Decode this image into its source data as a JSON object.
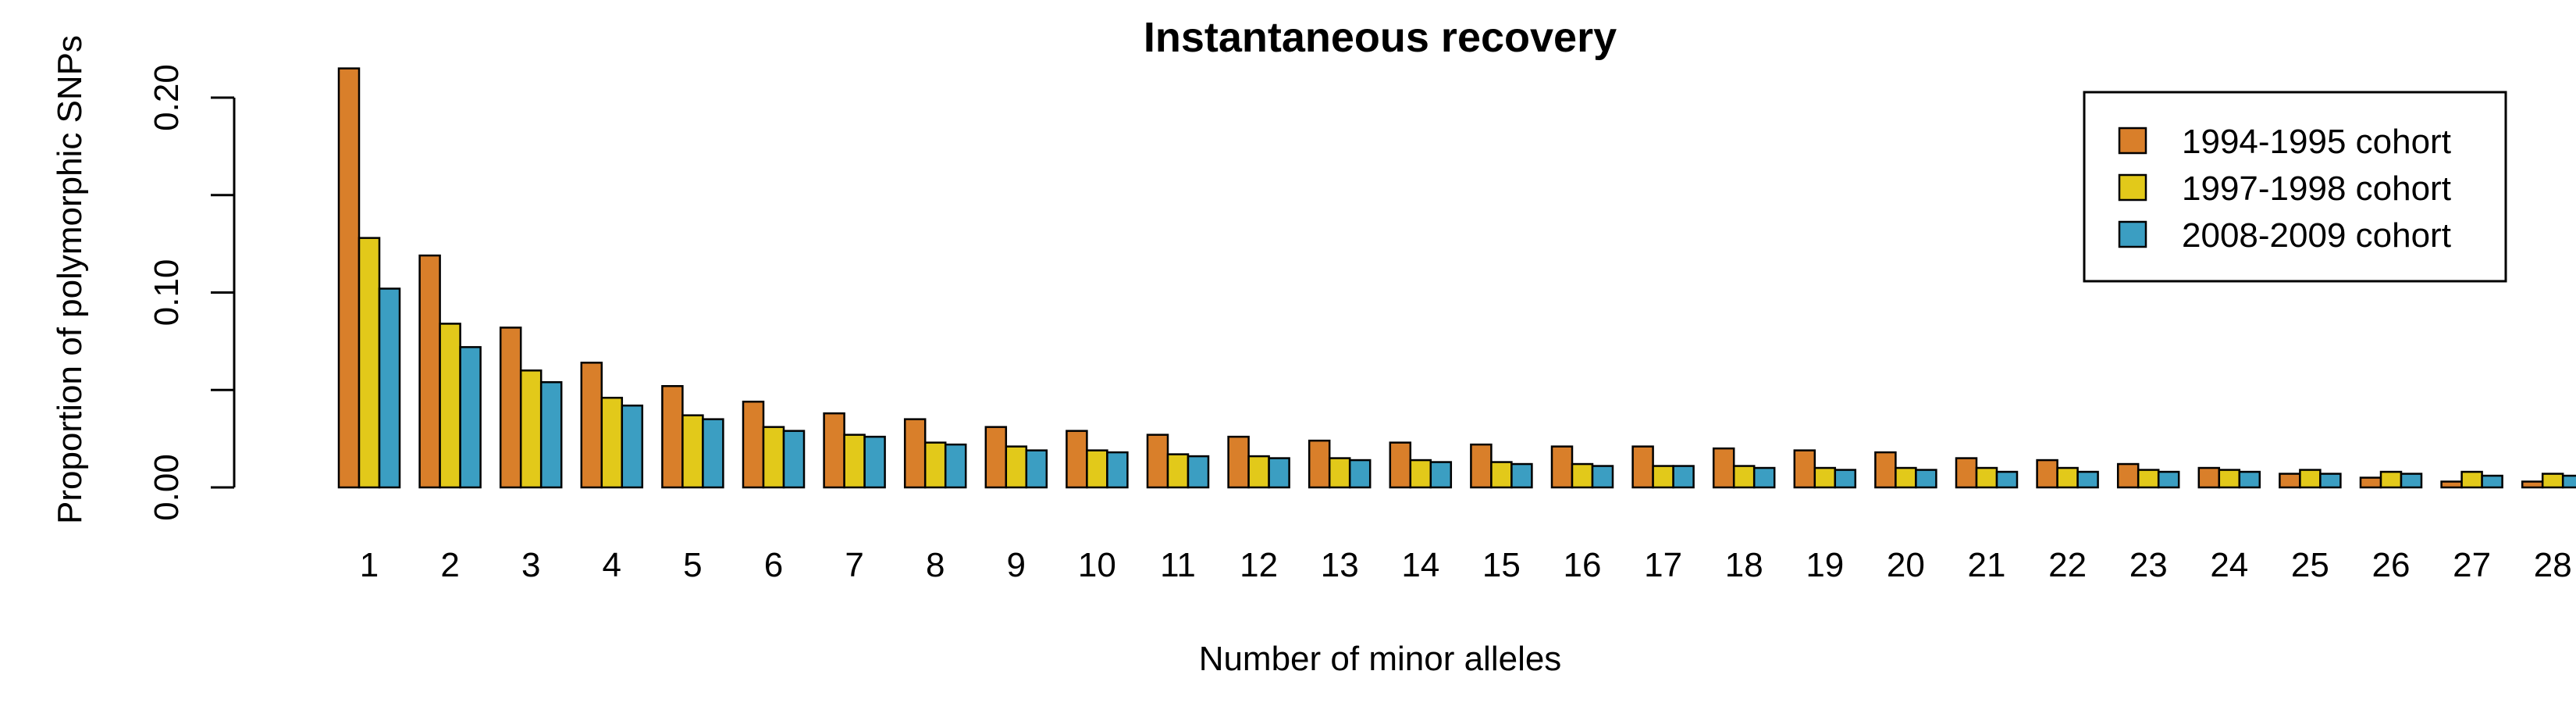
{
  "chart_data": {
    "type": "bar",
    "title": "Instantaneous recovery",
    "xlabel": "Number of minor alleles",
    "ylabel": "Proportion of polymorphic SNPs",
    "ylim": [
      0,
      0.22
    ],
    "yticks": [
      0.0,
      0.05,
      0.1,
      0.15,
      0.2
    ],
    "ytick_labels": [
      "0.00",
      "0.10",
      "0.20"
    ],
    "grid": false,
    "legend_position": "top-right",
    "categories": [
      "1",
      "2",
      "3",
      "4",
      "5",
      "6",
      "7",
      "8",
      "9",
      "10",
      "11",
      "12",
      "13",
      "14",
      "15",
      "16",
      "17",
      "18",
      "19",
      "20",
      "21",
      "22",
      "23",
      "24",
      "25",
      "26",
      "27",
      "28"
    ],
    "series": [
      {
        "name": "1994-1995 cohort",
        "color": "#D97F2A",
        "values": [
          0.215,
          0.119,
          0.082,
          0.064,
          0.052,
          0.044,
          0.038,
          0.035,
          0.031,
          0.029,
          0.027,
          0.026,
          0.024,
          0.023,
          0.022,
          0.021,
          0.021,
          0.02,
          0.019,
          0.018,
          0.015,
          0.014,
          0.012,
          0.01,
          0.007,
          0.005,
          0.003,
          0.003
        ]
      },
      {
        "name": "1997-1998 cohort",
        "color": "#E2C91A",
        "values": [
          0.128,
          0.084,
          0.06,
          0.046,
          0.037,
          0.031,
          0.027,
          0.023,
          0.021,
          0.019,
          0.017,
          0.016,
          0.015,
          0.014,
          0.013,
          0.012,
          0.011,
          0.011,
          0.01,
          0.01,
          0.01,
          0.01,
          0.009,
          0.009,
          0.009,
          0.008,
          0.008,
          0.007
        ]
      },
      {
        "name": "2008-2009 cohort",
        "color": "#3B9EC2",
        "values": [
          0.102,
          0.072,
          0.054,
          0.042,
          0.035,
          0.029,
          0.026,
          0.022,
          0.019,
          0.018,
          0.016,
          0.015,
          0.014,
          0.013,
          0.012,
          0.011,
          0.011,
          0.01,
          0.009,
          0.009,
          0.008,
          0.008,
          0.008,
          0.008,
          0.007,
          0.007,
          0.006,
          0.006
        ]
      }
    ]
  }
}
